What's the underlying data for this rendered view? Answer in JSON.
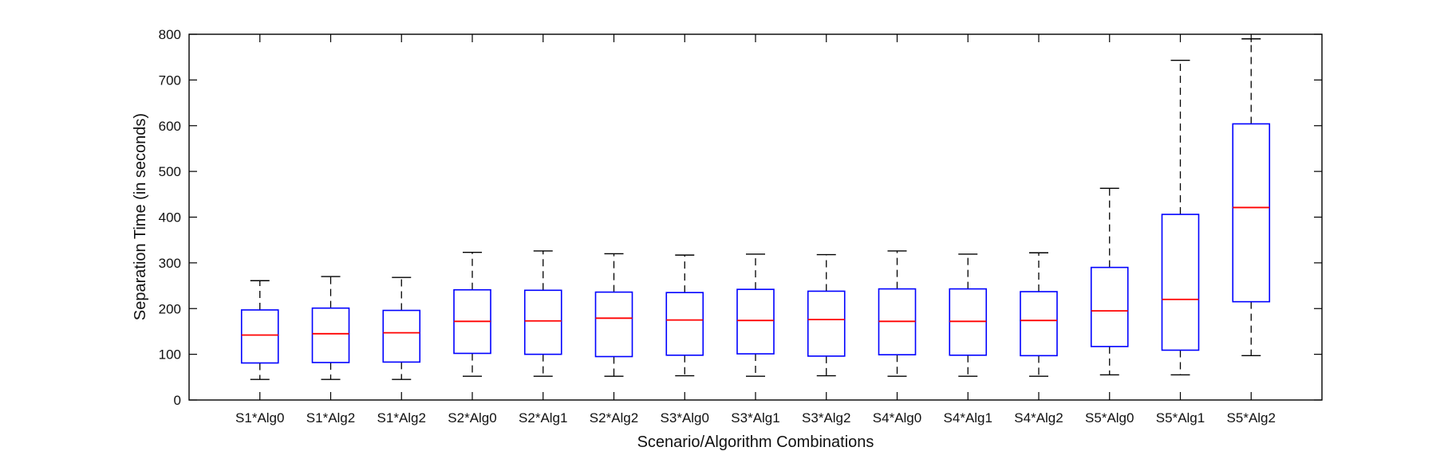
{
  "chart_data": {
    "type": "box",
    "xlabel": "Scenario/Algorithm Combinations",
    "ylabel": "Separation Time (in seconds)",
    "ylim": [
      0,
      800
    ],
    "yticks": [
      0,
      100,
      200,
      300,
      400,
      500,
      600,
      700,
      800
    ],
    "grid": false,
    "categories": [
      "S1*Alg0",
      "S1*Alg2",
      "S1*Alg2",
      "S2*Alg0",
      "S2*Alg1",
      "S2*Alg2",
      "S3*Alg0",
      "S3*Alg1",
      "S3*Alg2",
      "S4*Alg0",
      "S4*Alg1",
      "S4*Alg2",
      "S5*Alg0",
      "S5*Alg1",
      "S5*Alg2"
    ],
    "boxes": [
      {
        "whisker_low": 45,
        "q1": 81,
        "median": 142,
        "q3": 197,
        "whisker_high": 261
      },
      {
        "whisker_low": 45,
        "q1": 82,
        "median": 145,
        "q3": 201,
        "whisker_high": 270
      },
      {
        "whisker_low": 45,
        "q1": 83,
        "median": 147,
        "q3": 196,
        "whisker_high": 268
      },
      {
        "whisker_low": 52,
        "q1": 102,
        "median": 172,
        "q3": 241,
        "whisker_high": 323
      },
      {
        "whisker_low": 52,
        "q1": 100,
        "median": 173,
        "q3": 240,
        "whisker_high": 326
      },
      {
        "whisker_low": 52,
        "q1": 95,
        "median": 179,
        "q3": 236,
        "whisker_high": 320
      },
      {
        "whisker_low": 53,
        "q1": 98,
        "median": 175,
        "q3": 235,
        "whisker_high": 317
      },
      {
        "whisker_low": 52,
        "q1": 101,
        "median": 174,
        "q3": 242,
        "whisker_high": 319
      },
      {
        "whisker_low": 53,
        "q1": 96,
        "median": 176,
        "q3": 238,
        "whisker_high": 318
      },
      {
        "whisker_low": 52,
        "q1": 99,
        "median": 172,
        "q3": 243,
        "whisker_high": 326
      },
      {
        "whisker_low": 52,
        "q1": 98,
        "median": 172,
        "q3": 243,
        "whisker_high": 319
      },
      {
        "whisker_low": 52,
        "q1": 97,
        "median": 174,
        "q3": 237,
        "whisker_high": 322
      },
      {
        "whisker_low": 55,
        "q1": 117,
        "median": 195,
        "q3": 290,
        "whisker_high": 463
      },
      {
        "whisker_low": 55,
        "q1": 109,
        "median": 220,
        "q3": 406,
        "whisker_high": 743
      },
      {
        "whisker_low": 97,
        "q1": 215,
        "median": 421,
        "q3": 604,
        "whisker_high": 790
      }
    ],
    "colors": {
      "box": "#0000ff",
      "median": "#ff0000",
      "whisker": "#000000",
      "axes": "#000000"
    }
  }
}
